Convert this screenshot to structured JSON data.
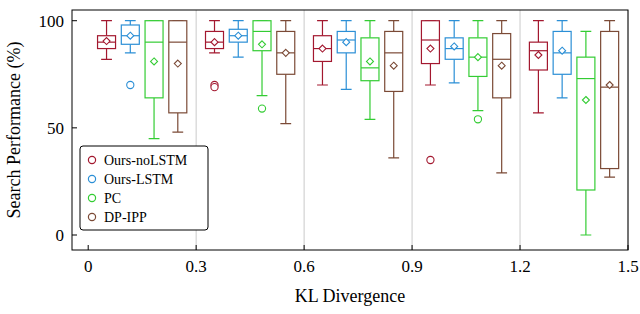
{
  "chart_data": {
    "type": "box",
    "xlabel": "KL Divergence",
    "ylabel": "Search Performance (%)",
    "x": [
      0.15,
      0.45,
      0.75,
      1.05,
      1.35
    ],
    "xlim": [
      -0.045,
      1.5
    ],
    "xticks": [
      0,
      0.3,
      0.6,
      0.9,
      1.2,
      1.5
    ],
    "ylim": [
      -7,
      105
    ],
    "yticks": [
      0,
      50,
      100
    ],
    "grid": true,
    "legend": "lower left",
    "series": [
      {
        "name": "Ours-noLSTM",
        "color": "#a3182f",
        "min": [
          82,
          85,
          70,
          70,
          57
        ],
        "q1": [
          87,
          87,
          81,
          80,
          77
        ],
        "median": [
          90,
          90,
          87,
          91,
          86
        ],
        "q3": [
          93,
          95,
          93,
          100,
          90
        ],
        "max": [
          100,
          100,
          100,
          100,
          100
        ],
        "mean": [
          90.5,
          90,
          87,
          87,
          84
        ],
        "outliers": [
          [],
          [
            70,
            69
          ],
          [],
          [
            35
          ],
          []
        ]
      },
      {
        "name": "Ours-LSTM",
        "color": "#2b8fd6",
        "min": [
          85,
          83,
          68,
          71,
          64
        ],
        "q1": [
          89,
          90,
          85,
          82,
          75
        ],
        "median": [
          93,
          93,
          91,
          87,
          85
        ],
        "q3": [
          98,
          96,
          95,
          92,
          95
        ],
        "max": [
          100,
          100,
          100,
          100,
          100
        ],
        "mean": [
          93,
          93,
          90,
          88,
          86
        ],
        "outliers": [
          [
            70
          ],
          [],
          [],
          [],
          []
        ]
      },
      {
        "name": "PC",
        "color": "#33cc33",
        "min": [
          45,
          65,
          54,
          58,
          0
        ],
        "q1": [
          64,
          86,
          72,
          74,
          21
        ],
        "median": [
          90,
          95,
          78,
          83,
          73
        ],
        "q3": [
          100,
          100,
          92,
          92,
          83
        ],
        "max": [
          100,
          100,
          100,
          100,
          95
        ],
        "mean": [
          81,
          89,
          81,
          83,
          63
        ],
        "outliers": [
          [],
          [
            59
          ],
          [],
          [
            54
          ],
          []
        ]
      },
      {
        "name": "DP-IPP",
        "color": "#7b4a36",
        "min": [
          48,
          52,
          36,
          29,
          27
        ],
        "q1": [
          57,
          75,
          67,
          64,
          31
        ],
        "median": [
          90,
          85,
          85,
          82,
          69
        ],
        "q3": [
          100,
          95,
          95,
          94,
          95
        ],
        "max": [
          100,
          100,
          100,
          100,
          100
        ],
        "mean": [
          80,
          85,
          79,
          79,
          70
        ],
        "outliers": [
          [],
          [],
          [],
          [],
          []
        ]
      }
    ]
  }
}
